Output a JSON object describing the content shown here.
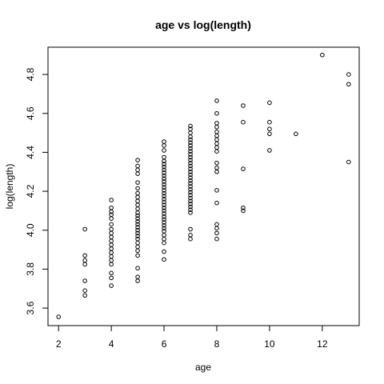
{
  "chart_data": {
    "type": "scatter",
    "title": "age vs log(length)",
    "xlabel": "age",
    "ylabel": "log(length)",
    "xlim": [
      1.6,
      13.4
    ],
    "ylim": [
      3.51,
      4.94
    ],
    "xticks": [
      2,
      4,
      6,
      8,
      10,
      12
    ],
    "yticks": [
      3.6,
      3.8,
      4.0,
      4.2,
      4.4,
      4.6,
      4.8
    ],
    "ytick_labels": [
      "3.6",
      "3.8",
      "4.0",
      "4.2",
      "4.4",
      "4.6",
      "4.8"
    ],
    "grid": false,
    "legend": "none",
    "points": [
      [
        2,
        3.555
      ],
      [
        3,
        3.665
      ],
      [
        3,
        3.69
      ],
      [
        3,
        3.74
      ],
      [
        3,
        3.825
      ],
      [
        3,
        3.845
      ],
      [
        3,
        3.87
      ],
      [
        3,
        4.005
      ],
      [
        4,
        3.715
      ],
      [
        4,
        3.755
      ],
      [
        4,
        3.78
      ],
      [
        4,
        3.825
      ],
      [
        4,
        3.845
      ],
      [
        4,
        3.865
      ],
      [
        4,
        3.885
      ],
      [
        4,
        3.905
      ],
      [
        4,
        3.925
      ],
      [
        4,
        3.945
      ],
      [
        4,
        3.965
      ],
      [
        4,
        3.985
      ],
      [
        4,
        4.005
      ],
      [
        4,
        4.03
      ],
      [
        4,
        4.06
      ],
      [
        4,
        4.08
      ],
      [
        4,
        4.095
      ],
      [
        4,
        4.115
      ],
      [
        4,
        4.155
      ],
      [
        5,
        3.74
      ],
      [
        5,
        3.76
      ],
      [
        5,
        3.805
      ],
      [
        5,
        3.87
      ],
      [
        5,
        3.895
      ],
      [
        5,
        3.915
      ],
      [
        5,
        3.935
      ],
      [
        5,
        3.955
      ],
      [
        5,
        3.97
      ],
      [
        5,
        3.985
      ],
      [
        5,
        4.0
      ],
      [
        5,
        4.015
      ],
      [
        5,
        4.03
      ],
      [
        5,
        4.045
      ],
      [
        5,
        4.06
      ],
      [
        5,
        4.075
      ],
      [
        5,
        4.09
      ],
      [
        5,
        4.11
      ],
      [
        5,
        4.13
      ],
      [
        5,
        4.15
      ],
      [
        5,
        4.17
      ],
      [
        5,
        4.19
      ],
      [
        5,
        4.215
      ],
      [
        5,
        4.245
      ],
      [
        5,
        4.29
      ],
      [
        5,
        4.31
      ],
      [
        5,
        4.33
      ],
      [
        5,
        4.36
      ],
      [
        6,
        3.85
      ],
      [
        6,
        3.89
      ],
      [
        6,
        3.935
      ],
      [
        6,
        3.955
      ],
      [
        6,
        3.975
      ],
      [
        6,
        3.995
      ],
      [
        6,
        4.01
      ],
      [
        6,
        4.025
      ],
      [
        6,
        4.04
      ],
      [
        6,
        4.055
      ],
      [
        6,
        4.07
      ],
      [
        6,
        4.085
      ],
      [
        6,
        4.1
      ],
      [
        6,
        4.115
      ],
      [
        6,
        4.13
      ],
      [
        6,
        4.145
      ],
      [
        6,
        4.16
      ],
      [
        6,
        4.175
      ],
      [
        6,
        4.19
      ],
      [
        6,
        4.205
      ],
      [
        6,
        4.22
      ],
      [
        6,
        4.235
      ],
      [
        6,
        4.25
      ],
      [
        6,
        4.265
      ],
      [
        6,
        4.28
      ],
      [
        6,
        4.295
      ],
      [
        6,
        4.31
      ],
      [
        6,
        4.325
      ],
      [
        6,
        4.34
      ],
      [
        6,
        4.355
      ],
      [
        6,
        4.375
      ],
      [
        6,
        4.41
      ],
      [
        6,
        4.435
      ],
      [
        6,
        4.455
      ],
      [
        7,
        3.955
      ],
      [
        7,
        3.975
      ],
      [
        7,
        4.005
      ],
      [
        7,
        4.09
      ],
      [
        7,
        4.105
      ],
      [
        7,
        4.12
      ],
      [
        7,
        4.135
      ],
      [
        7,
        4.15
      ],
      [
        7,
        4.165
      ],
      [
        7,
        4.18
      ],
      [
        7,
        4.195
      ],
      [
        7,
        4.21
      ],
      [
        7,
        4.225
      ],
      [
        7,
        4.24
      ],
      [
        7,
        4.255
      ],
      [
        7,
        4.27
      ],
      [
        7,
        4.285
      ],
      [
        7,
        4.3
      ],
      [
        7,
        4.315
      ],
      [
        7,
        4.33
      ],
      [
        7,
        4.345
      ],
      [
        7,
        4.36
      ],
      [
        7,
        4.375
      ],
      [
        7,
        4.39
      ],
      [
        7,
        4.405
      ],
      [
        7,
        4.42
      ],
      [
        7,
        4.435
      ],
      [
        7,
        4.45
      ],
      [
        7,
        4.465
      ],
      [
        7,
        4.48
      ],
      [
        7,
        4.5
      ],
      [
        7,
        4.52
      ],
      [
        7,
        4.535
      ],
      [
        8,
        3.955
      ],
      [
        8,
        3.985
      ],
      [
        8,
        4.01
      ],
      [
        8,
        4.03
      ],
      [
        8,
        4.14
      ],
      [
        8,
        4.205
      ],
      [
        8,
        4.3
      ],
      [
        8,
        4.32
      ],
      [
        8,
        4.345
      ],
      [
        8,
        4.405
      ],
      [
        8,
        4.425
      ],
      [
        8,
        4.445
      ],
      [
        8,
        4.465
      ],
      [
        8,
        4.485
      ],
      [
        8,
        4.505
      ],
      [
        8,
        4.53
      ],
      [
        8,
        4.55
      ],
      [
        8,
        4.6
      ],
      [
        8,
        4.665
      ],
      [
        9,
        4.1
      ],
      [
        9,
        4.115
      ],
      [
        9,
        4.315
      ],
      [
        9,
        4.555
      ],
      [
        9,
        4.64
      ],
      [
        10,
        4.41
      ],
      [
        10,
        4.495
      ],
      [
        10,
        4.52
      ],
      [
        10,
        4.555
      ],
      [
        10,
        4.655
      ],
      [
        11,
        4.495
      ],
      [
        12,
        4.9
      ],
      [
        13,
        4.35
      ],
      [
        13,
        4.75
      ],
      [
        13,
        4.8
      ]
    ]
  }
}
